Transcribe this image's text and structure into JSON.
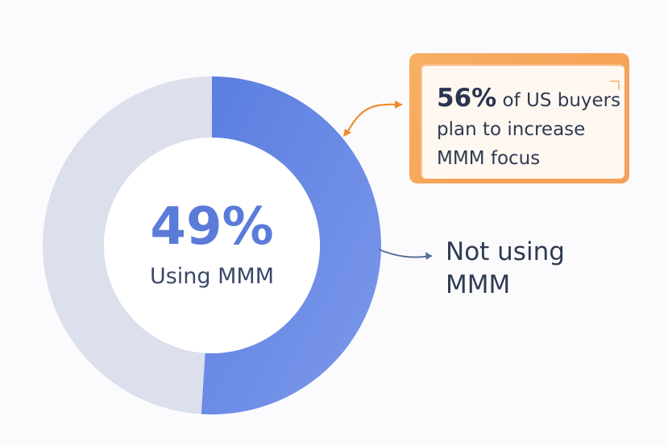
{
  "chart_data": {
    "type": "pie",
    "slices": [
      {
        "label": "Using MMM",
        "value": 49,
        "color": "#dcdfec"
      },
      {
        "label": "Not using MMM",
        "value": 51,
        "color": "#6385e3"
      }
    ],
    "center_value": "49%",
    "center_label": "Using MMM",
    "side_label_line1": "Not using",
    "side_label_line2": "MMM"
  },
  "callout": {
    "highlight": "56%",
    "text_line1": " of US buyers",
    "text_line2": "plan to increase",
    "text_line3": "MMM focus"
  },
  "colors": {
    "ring_used": "#dcdfec",
    "ring_not_used": "#6385e3",
    "accent_orange": "#f5a15a",
    "arrow_blue": "#5a6f9e"
  }
}
